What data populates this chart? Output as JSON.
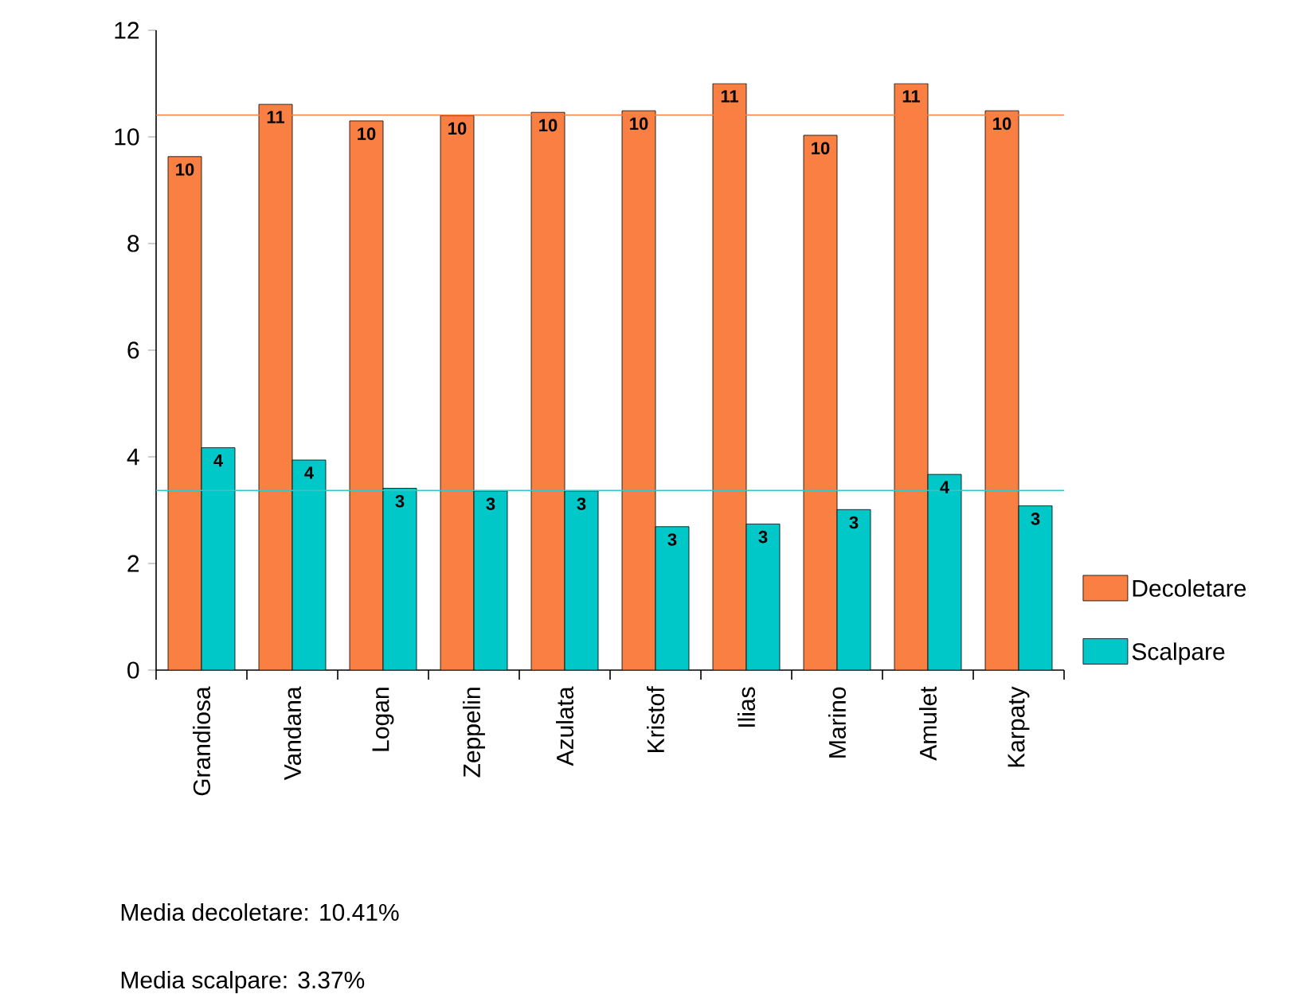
{
  "chart_data": {
    "type": "bar",
    "categories": [
      "Grandiosa",
      "Vandana",
      "Logan",
      "Zeppelin",
      "Azulata",
      "Kristof",
      "Ilias",
      "Marino",
      "Amulet",
      "Karpaty"
    ],
    "series": [
      {
        "name": "Decoletare",
        "color": "#fa7f42",
        "values": [
          9.63,
          10.61,
          10.3,
          10.4,
          10.46,
          10.49,
          11.0,
          10.03,
          11.0,
          10.49
        ],
        "value_labels": [
          "10",
          "11",
          "10",
          "10",
          "10",
          "10",
          "11",
          "10",
          "11",
          "10"
        ]
      },
      {
        "name": "Scalpare",
        "color": "#00c8c8",
        "values": [
          4.17,
          3.94,
          3.41,
          3.36,
          3.36,
          2.69,
          2.74,
          3.01,
          3.67,
          3.08
        ],
        "value_labels": [
          "4",
          "4",
          "3",
          "3",
          "3",
          "3",
          "3",
          "3",
          "4",
          "3"
        ]
      }
    ],
    "ylim": [
      0,
      12
    ],
    "yticks": [
      0,
      2,
      4,
      6,
      8,
      10,
      12
    ],
    "legend": "right",
    "ref_lines": [
      {
        "axis": "y",
        "value": 10.41,
        "color": "#fa7f42"
      },
      {
        "axis": "y",
        "value": 3.37,
        "color": "#30c8c8"
      }
    ],
    "annotations": [
      "Media decoletare: 10.41%",
      "Media scalpare: 3.37%"
    ]
  }
}
